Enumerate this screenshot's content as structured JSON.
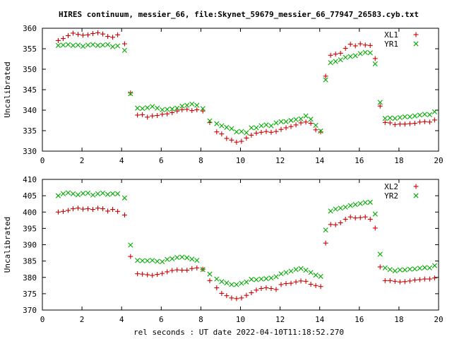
{
  "title": "HIRES continuum, messier_66, file:Skynet_59679_messier_66_77947_26583.cyb.txt",
  "xlabel": "rel seconds : UT date 2022-04-10T11:18:52.270",
  "colors": {
    "xl": "#cc0000",
    "yr": "#00aa00"
  },
  "chart_data": [
    {
      "type": "scatter",
      "ylabel": "Uncalibrated",
      "xlim": [
        0,
        20
      ],
      "ylim": [
        330,
        360
      ],
      "xticks": [
        0,
        2,
        4,
        6,
        8,
        10,
        12,
        14,
        16,
        18,
        20
      ],
      "yticks": [
        330,
        335,
        340,
        345,
        350,
        355,
        360
      ],
      "legend": "top-right",
      "series": [
        {
          "name": "XL1",
          "marker": "plus",
          "color": "#cc0000",
          "x": [
            0.8,
            1.05,
            1.3,
            1.55,
            1.8,
            2.05,
            2.3,
            2.55,
            2.8,
            3.05,
            3.3,
            3.55,
            3.8,
            4.15,
            4.45,
            4.8,
            5.05,
            5.3,
            5.55,
            5.8,
            6.05,
            6.3,
            6.55,
            6.8,
            7.05,
            7.3,
            7.55,
            7.8,
            8.1,
            8.45,
            8.8,
            9.05,
            9.3,
            9.55,
            9.8,
            10.05,
            10.3,
            10.55,
            10.8,
            11.05,
            11.3,
            11.55,
            11.8,
            12.05,
            12.3,
            12.55,
            12.8,
            13.05,
            13.3,
            13.55,
            13.8,
            14.05,
            14.3,
            14.55,
            14.8,
            15.05,
            15.3,
            15.55,
            15.8,
            16.05,
            16.3,
            16.55,
            16.8,
            17.05,
            17.3,
            17.55,
            17.8,
            18.05,
            18.3,
            18.55,
            18.8,
            19.05,
            19.3,
            19.55,
            19.8
          ],
          "y": [
            357,
            357.5,
            358.2,
            358.8,
            358.5,
            358.3,
            358.4,
            358.7,
            358.9,
            358.6,
            358,
            357.8,
            358.4,
            356.2,
            344.2,
            338.8,
            338.9,
            338.3,
            338.6,
            338.7,
            339,
            339.1,
            339.4,
            339.8,
            340.1,
            340.2,
            339.9,
            340.1,
            339.8,
            337,
            334.7,
            334.2,
            333.1,
            332.7,
            332.2,
            332.4,
            333.2,
            333.9,
            334.4,
            334.6,
            334.8,
            334.6,
            334.8,
            335.3,
            335.7,
            336,
            336.4,
            336.9,
            337.1,
            336.8,
            335.2,
            334.7,
            348.3,
            353.4,
            353.7,
            353.9,
            355.1,
            356.1,
            355.7,
            356.2,
            355.9,
            355.8,
            352.6,
            341,
            337,
            336.9,
            336.5,
            336.6,
            336.6,
            336.7,
            336.8,
            337.1,
            337.2,
            337.1,
            337.6
          ]
        },
        {
          "name": "YR1",
          "marker": "x",
          "color": "#00aa00",
          "x": [
            0.8,
            1.05,
            1.3,
            1.55,
            1.8,
            2.05,
            2.3,
            2.55,
            2.8,
            3.05,
            3.3,
            3.55,
            3.8,
            4.15,
            4.45,
            4.8,
            5.05,
            5.3,
            5.55,
            5.8,
            6.05,
            6.3,
            6.55,
            6.8,
            7.05,
            7.3,
            7.55,
            7.8,
            8.1,
            8.45,
            8.8,
            9.05,
            9.3,
            9.55,
            9.8,
            10.05,
            10.3,
            10.55,
            10.8,
            11.05,
            11.3,
            11.55,
            11.8,
            12.05,
            12.3,
            12.55,
            12.8,
            13.05,
            13.3,
            13.55,
            13.8,
            14.05,
            14.3,
            14.55,
            14.8,
            15.05,
            15.3,
            15.55,
            15.8,
            16.05,
            16.3,
            16.55,
            16.8,
            17.05,
            17.3,
            17.55,
            17.8,
            18.05,
            18.3,
            18.55,
            18.8,
            19.05,
            19.3,
            19.55,
            19.8
          ],
          "y": [
            355.8,
            355.9,
            356,
            355.8,
            355.9,
            355.6,
            355.9,
            356,
            355.8,
            355.9,
            356,
            355.5,
            355.7,
            354.6,
            344,
            340.5,
            340.4,
            340.6,
            340.9,
            340.5,
            340.1,
            340.2,
            340.3,
            340.5,
            341,
            341.2,
            341.5,
            341.2,
            340.4,
            337.4,
            336.7,
            336.2,
            335.8,
            335.5,
            334.7,
            334.8,
            334.5,
            335.7,
            335.7,
            336.2,
            336.4,
            336.2,
            336.9,
            337.2,
            337.2,
            337.5,
            337.7,
            337.9,
            338.6,
            337.8,
            336.3,
            334.9,
            347.4,
            351.6,
            351.9,
            352.3,
            352.9,
            353.1,
            353.3,
            353.8,
            354.1,
            354,
            351.3,
            341.9,
            338,
            338.1,
            338,
            338.2,
            338.4,
            338.4,
            338.6,
            338.8,
            339,
            338.9,
            339.6
          ]
        }
      ]
    },
    {
      "type": "scatter",
      "ylabel": "Uncalibrated",
      "xlim": [
        0,
        20
      ],
      "ylim": [
        370,
        410
      ],
      "xticks": [
        0,
        2,
        4,
        6,
        8,
        10,
        12,
        14,
        16,
        18,
        20
      ],
      "yticks": [
        370,
        375,
        380,
        385,
        390,
        395,
        400,
        405,
        410
      ],
      "legend": "top-right",
      "series": [
        {
          "name": "XL2",
          "marker": "plus",
          "color": "#cc0000",
          "x": [
            0.8,
            1.05,
            1.3,
            1.55,
            1.8,
            2.05,
            2.3,
            2.55,
            2.8,
            3.05,
            3.3,
            3.55,
            3.8,
            4.15,
            4.45,
            4.8,
            5.05,
            5.3,
            5.55,
            5.8,
            6.05,
            6.3,
            6.55,
            6.8,
            7.05,
            7.3,
            7.55,
            7.8,
            8.1,
            8.45,
            8.8,
            9.05,
            9.3,
            9.55,
            9.8,
            10.05,
            10.3,
            10.55,
            10.8,
            11.05,
            11.3,
            11.55,
            11.8,
            12.05,
            12.3,
            12.55,
            12.8,
            13.05,
            13.3,
            13.55,
            13.8,
            14.05,
            14.3,
            14.55,
            14.8,
            15.05,
            15.3,
            15.55,
            15.8,
            16.05,
            16.3,
            16.55,
            16.8,
            17.05,
            17.3,
            17.55,
            17.8,
            18.05,
            18.3,
            18.55,
            18.8,
            19.05,
            19.3,
            19.55,
            19.8
          ],
          "y": [
            400,
            400.2,
            400.5,
            401,
            401.2,
            400.9,
            401,
            400.8,
            401.2,
            401,
            400.3,
            400.8,
            400.2,
            399.1,
            386.4,
            381.1,
            381,
            380.8,
            380.6,
            380.9,
            381.2,
            381.7,
            382.1,
            382.3,
            382.2,
            382.2,
            382.7,
            382.9,
            382.5,
            379,
            376.8,
            375.1,
            374.4,
            373.7,
            373.5,
            373.7,
            374.5,
            375.3,
            376.1,
            376.6,
            376.8,
            376.6,
            376.3,
            377.8,
            378.1,
            378.2,
            378.6,
            378.9,
            378.8,
            377.9,
            377.5,
            377.2,
            390.5,
            396.2,
            396.1,
            396.7,
            397.8,
            398.5,
            398.2,
            398.3,
            398.5,
            397.8,
            395.1,
            383.2,
            379,
            379,
            378.8,
            378.6,
            378.7,
            378.9,
            379.2,
            379.3,
            379.5,
            379.5,
            379.8
          ]
        },
        {
          "name": "YR2",
          "marker": "x",
          "color": "#00aa00",
          "x": [
            0.8,
            1.05,
            1.3,
            1.55,
            1.8,
            2.05,
            2.3,
            2.55,
            2.8,
            3.05,
            3.3,
            3.55,
            3.8,
            4.15,
            4.45,
            4.8,
            5.05,
            5.3,
            5.55,
            5.8,
            6.05,
            6.3,
            6.55,
            6.8,
            7.05,
            7.3,
            7.55,
            7.8,
            8.1,
            8.45,
            8.8,
            9.05,
            9.3,
            9.55,
            9.8,
            10.05,
            10.3,
            10.55,
            10.8,
            11.05,
            11.3,
            11.55,
            11.8,
            12.05,
            12.3,
            12.55,
            12.8,
            13.05,
            13.3,
            13.55,
            13.8,
            14.05,
            14.3,
            14.55,
            14.8,
            15.05,
            15.3,
            15.55,
            15.8,
            16.05,
            16.3,
            16.55,
            16.8,
            17.05,
            17.3,
            17.55,
            17.8,
            18.05,
            18.3,
            18.55,
            18.8,
            19.05,
            19.3,
            19.55,
            19.8
          ],
          "y": [
            405,
            405.6,
            405.9,
            405.6,
            405.3,
            405.7,
            405.8,
            405.2,
            405.6,
            405.8,
            405.4,
            405.6,
            405.6,
            404.3,
            389.9,
            385.2,
            385.1,
            385.1,
            385.2,
            384.9,
            384.8,
            385.5,
            385.7,
            386.1,
            386.2,
            386,
            385.6,
            385.2,
            382.4,
            381,
            379.5,
            378.7,
            378.3,
            377.8,
            377.8,
            378.2,
            378.6,
            379.4,
            379.3,
            379.5,
            379.6,
            379.8,
            380.2,
            381.1,
            381.5,
            381.9,
            382.4,
            382.7,
            382.2,
            381.5,
            380.7,
            380.3,
            394.5,
            400.3,
            400.9,
            401.2,
            401.5,
            402,
            402.3,
            402.6,
            402.9,
            403,
            399.4,
            387.1,
            382.9,
            382.4,
            382,
            382.3,
            382.3,
            382.5,
            382.6,
            382.8,
            383,
            382.9,
            383.6
          ]
        }
      ]
    }
  ]
}
